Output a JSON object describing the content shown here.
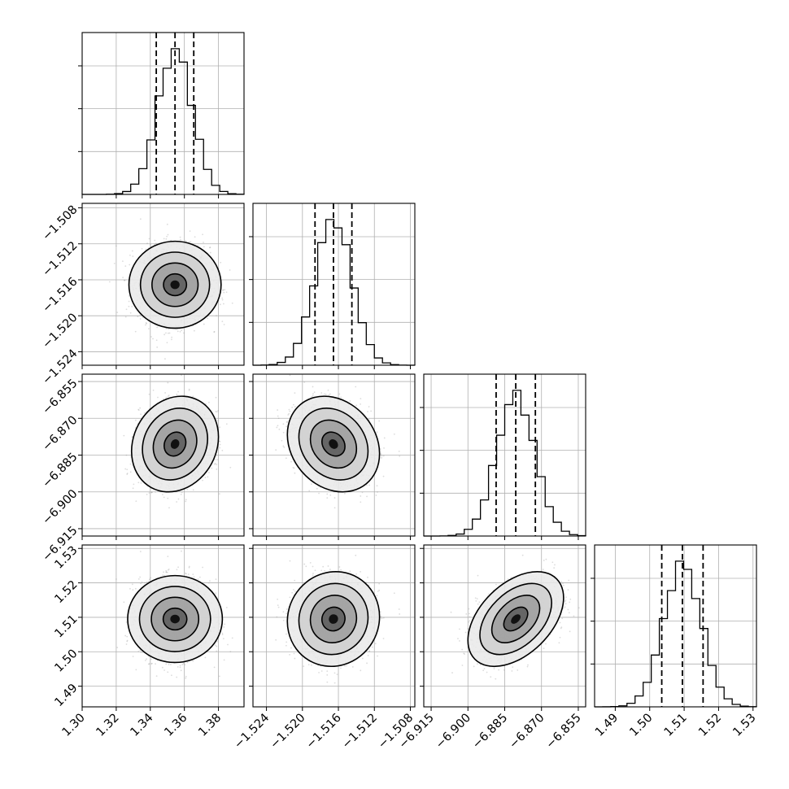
{
  "chart_data": {
    "type": "corner",
    "title": "",
    "grid": true,
    "parameters": [
      {
        "name": "",
        "range": [
          1.3,
          1.395
        ],
        "ticks": [
          "1.30",
          "1.32",
          "1.34",
          "1.36",
          "1.38"
        ],
        "tick_values": [
          1.3,
          1.32,
          1.34,
          1.36,
          1.38
        ],
        "mean": 1.3545,
        "sigma": 0.0102,
        "quantiles": [
          1.3435,
          1.3545,
          1.3655
        ]
      },
      {
        "name": "",
        "range": [
          -1.5255,
          -1.5075
        ],
        "ticks": [
          "−1.524",
          "−1.520",
          "−1.516",
          "−1.512",
          "−1.508"
        ],
        "tick_values": [
          -1.524,
          -1.52,
          -1.516,
          -1.512,
          -1.508
        ],
        "mean": -1.51655,
        "sigma": 0.00205,
        "quantiles": [
          -1.5186,
          -1.51655,
          -1.5145
        ]
      },
      {
        "name": "",
        "range": [
          -6.918,
          -6.852
        ],
        "ticks": [
          "−6.915",
          "−6.900",
          "−6.885",
          "−6.870",
          "−6.855"
        ],
        "tick_values": [
          -6.915,
          -6.9,
          -6.885,
          -6.87,
          -6.855
        ],
        "mean": -6.8805,
        "sigma": 0.0078,
        "quantiles": [
          -6.8885,
          -6.8805,
          -6.8725
        ]
      },
      {
        "name": "",
        "range": [
          1.484,
          1.531
        ],
        "ticks": [
          "1.49",
          "1.50",
          "1.51",
          "1.52",
          "1.53"
        ],
        "tick_values": [
          1.49,
          1.5,
          1.51,
          1.52,
          1.53
        ],
        "mean": 1.5095,
        "sigma": 0.0055,
        "quantiles": [
          1.5035,
          1.5095,
          1.5155
        ]
      }
    ],
    "correlations": [
      {
        "pair": [
          1,
          0
        ],
        "rho": 0.0
      },
      {
        "pair": [
          2,
          0
        ],
        "rho": 0.15
      },
      {
        "pair": [
          2,
          1
        ],
        "rho": -0.2
      },
      {
        "pair": [
          3,
          0
        ],
        "rho": 0.0
      },
      {
        "pair": [
          3,
          1
        ],
        "rho": 0.05
      },
      {
        "pair": [
          3,
          2
        ],
        "rho": 0.45
      }
    ],
    "contour_levels_sigma": [
      0.5,
      1.0,
      1.5,
      2.0
    ],
    "histogram_bins": 20
  }
}
